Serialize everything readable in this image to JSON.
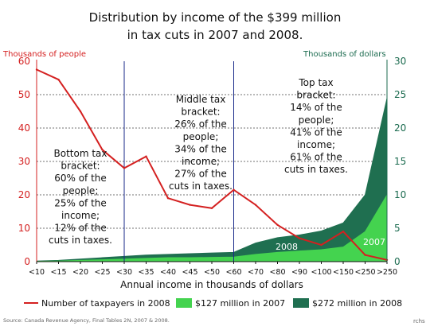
{
  "chart_data": {
    "type": "area",
    "title_lines": [
      "Distribution by income of the $399 million",
      "in tax cuts in 2007 and 2008."
    ],
    "y_left_label": "Thousands of people",
    "y_right_label": "Thousands of dollars",
    "xlabel": "Annual income in thousands of dollars",
    "categories": [
      "<10",
      "<15",
      "<20",
      "<25",
      "<30",
      "<35",
      "<40",
      "<45",
      "<50",
      "<60",
      "<70",
      "<80",
      "<90",
      "<100",
      "<150",
      "<250",
      ">250"
    ],
    "ylim_left": [
      0,
      60
    ],
    "yticks_left": [
      "0",
      "10",
      "20",
      "30",
      "40",
      "50",
      "60"
    ],
    "ylim_right": [
      0,
      30
    ],
    "yticks_right": [
      "0",
      "5",
      "10",
      "15",
      "20",
      "25",
      "30"
    ],
    "grid": "horizontal dotted",
    "series": [
      {
        "name": "Number of taxpayers in 2008",
        "kind": "line",
        "axis": "left",
        "color": "#d42020",
        "values": [
          57.5,
          54.5,
          45,
          33.5,
          28,
          31.5,
          19,
          17,
          16,
          21.5,
          17,
          11,
          7,
          5,
          9,
          2,
          0.5
        ]
      },
      {
        "name": "$272 million in 2008",
        "kind": "area",
        "axis": "right",
        "color": "#1f6f50",
        "values": [
          0.1,
          0.2,
          0.4,
          0.6,
          0.8,
          1.0,
          1.1,
          1.2,
          1.3,
          1.4,
          2.8,
          3.6,
          4.0,
          4.6,
          5.8,
          10,
          24.5
        ]
      },
      {
        "name": "$127 million in 2007",
        "kind": "area",
        "axis": "right",
        "color": "#44d34f",
        "values": [
          0.05,
          0.1,
          0.2,
          0.3,
          0.4,
          0.5,
          0.6,
          0.6,
          0.65,
          0.7,
          1.1,
          1.4,
          1.6,
          1.8,
          2.2,
          4.5,
          10
        ]
      }
    ],
    "dividers_after_category": [
      "<30",
      "<60"
    ],
    "annotations": [
      {
        "lines": [
          "Bottom tax",
          "bracket:",
          "60% of the",
          "people;",
          "25% of the",
          "income;",
          "12% of the",
          "cuts in taxes."
        ]
      },
      {
        "lines": [
          "Middle tax",
          "bracket:",
          "26% of the",
          "people;",
          "34% of the",
          "income;",
          "27% of the",
          "cuts in taxes."
        ]
      },
      {
        "lines": [
          "Top tax",
          "bracket:",
          "14% of the",
          "people;",
          "41% of the",
          "income;",
          "61% of the",
          "cuts in taxes."
        ]
      }
    ],
    "series_labels": [
      "2008",
      "2007"
    ],
    "legend_position": "bottom"
  },
  "source": "Source: Canada Revenue Agency, Final Tables 2N, 2007 & 2008.",
  "credit": "rchs"
}
